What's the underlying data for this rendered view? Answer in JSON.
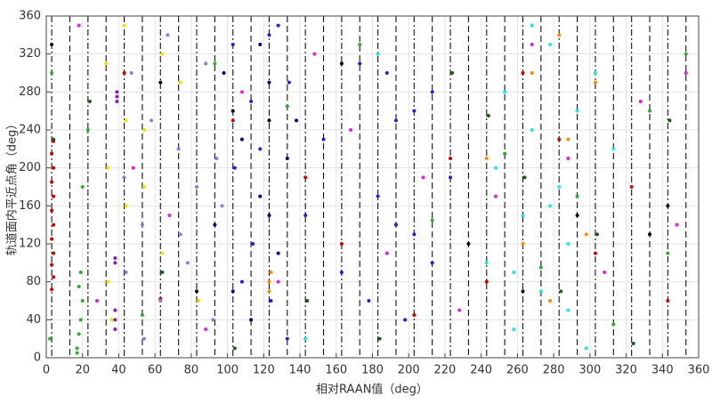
{
  "chart_data": {
    "type": "scatter",
    "xlabel": "相对RAAN值（deg）",
    "ylabel": "轨道面内平近点角（deg）",
    "xlim": [
      0,
      360
    ],
    "ylim": [
      0,
      360
    ],
    "xticks": [
      0,
      20,
      40,
      60,
      80,
      100,
      120,
      140,
      160,
      180,
      200,
      220,
      240,
      260,
      280,
      300,
      320,
      340,
      360
    ],
    "yticks": [
      0,
      40,
      80,
      120,
      160,
      200,
      240,
      280,
      320,
      360
    ],
    "grid": true,
    "vlines": [
      3,
      13,
      23,
      33,
      43,
      53,
      63,
      73,
      83,
      93,
      103,
      113,
      123,
      133,
      143,
      153,
      163,
      173,
      183,
      193,
      203,
      213,
      223,
      233,
      243,
      253,
      263,
      273,
      283,
      293,
      303,
      313,
      323,
      333,
      343,
      353
    ],
    "series": [
      {
        "color": "#d40000",
        "x": [
          3,
          4,
          3,
          4,
          3,
          4,
          3,
          4,
          3,
          4,
          3,
          4,
          43,
          63,
          103,
          143,
          163,
          203,
          223,
          243,
          263,
          263,
          283,
          303,
          323,
          343
        ],
        "y": [
          72,
          85,
          98,
          110,
          125,
          140,
          155,
          170,
          185,
          200,
          215,
          228,
          300,
          62,
          250,
          190,
          120,
          45,
          210,
          80,
          150,
          300,
          230,
          110,
          180,
          60
        ]
      },
      {
        "color": "#33aa33",
        "x": [
          2,
          3,
          17,
          18,
          19,
          20,
          18,
          19,
          17,
          20,
          23,
          53,
          93,
          133,
          173,
          213,
          253,
          273,
          293,
          313,
          333,
          343,
          353
        ],
        "y": [
          20,
          300,
          10,
          25,
          40,
          60,
          75,
          90,
          5,
          180,
          240,
          45,
          310,
          265,
          330,
          145,
          215,
          95,
          170,
          35,
          260,
          110,
          320
        ]
      },
      {
        "color": "#1a5c1a",
        "x": [
          4,
          24,
          64,
          104,
          144,
          184,
          224,
          244,
          264,
          284,
          304,
          324,
          344
        ],
        "y": [
          230,
          270,
          90,
          10,
          60,
          20,
          300,
          255,
          190,
          70,
          130,
          15,
          250
        ]
      },
      {
        "color": "#dd22dd",
        "x": [
          18,
          28,
          48,
          68,
          88,
          108,
          128,
          148,
          168,
          188,
          208,
          228,
          248,
          268,
          288,
          308,
          328,
          348,
          353
        ],
        "y": [
          350,
          60,
          200,
          150,
          30,
          280,
          80,
          320,
          240,
          110,
          190,
          50,
          170,
          330,
          210,
          90,
          270,
          140,
          300
        ]
      },
      {
        "color": "#e6e600",
        "x": [
          33,
          34,
          36,
          43,
          44,
          54,
          64,
          64,
          74,
          84,
          34,
          44,
          54
        ],
        "y": [
          310,
          200,
          40,
          350,
          160,
          240,
          320,
          110,
          290,
          60,
          80,
          250,
          180
        ]
      },
      {
        "color": "#7f1fbf",
        "x": [
          38,
          38,
          38,
          38,
          38,
          39,
          39,
          39
        ],
        "y": [
          30,
          40,
          50,
          100,
          105,
          270,
          275,
          280
        ]
      },
      {
        "color": "#8080e0",
        "x": [
          43,
          47,
          53,
          58,
          63,
          67,
          73,
          78,
          83,
          88,
          92,
          97,
          44,
          54,
          74,
          94
        ],
        "y": [
          190,
          300,
          140,
          250,
          60,
          340,
          220,
          100,
          180,
          310,
          40,
          160,
          90,
          20,
          130,
          210
        ]
      },
      {
        "color": "#1f1fdd",
        "x": [
          103,
          104,
          113,
          114,
          123,
          124,
          133,
          134,
          143,
          153,
          163,
          173,
          183,
          193,
          198,
          203,
          213,
          213,
          223,
          108,
          118,
          128,
          178,
          188,
          193,
          203
        ],
        "y": [
          330,
          200,
          270,
          120,
          340,
          60,
          20,
          290,
          150,
          230,
          90,
          310,
          170,
          250,
          40,
          130,
          280,
          100,
          190,
          80,
          220,
          350,
          60,
          300,
          140,
          260
        ]
      },
      {
        "color": "#000080",
        "x": [
          93,
          98,
          108,
          113,
          118,
          123,
          128,
          133,
          118,
          103,
          123,
          138
        ],
        "y": [
          140,
          300,
          230,
          40,
          170,
          290,
          110,
          210,
          330,
          70,
          150,
          250
        ]
      },
      {
        "color": "#22e5e5",
        "x": [
          143,
          183,
          243,
          248,
          253,
          258,
          263,
          268,
          273,
          278,
          283,
          288,
          293,
          298,
          303,
          313,
          258,
          268,
          278,
          288
        ],
        "y": [
          20,
          320,
          100,
          200,
          280,
          30,
          150,
          240,
          70,
          330,
          180,
          120,
          260,
          10,
          300,
          220,
          90,
          350,
          160,
          50
        ]
      },
      {
        "color": "#ff8c00",
        "x": [
          123,
          123,
          124,
          243,
          263,
          268,
          278,
          283,
          288,
          298,
          303
        ],
        "y": [
          70,
          80,
          90,
          210,
          120,
          300,
          60,
          340,
          230,
          130,
          290
        ]
      },
      {
        "color": "#000000",
        "x": [
          3,
          63,
          83,
          103,
          123,
          163,
          233,
          263,
          293,
          333,
          343
        ],
        "y": [
          330,
          290,
          70,
          260,
          250,
          310,
          120,
          70,
          150,
          130,
          160
        ]
      }
    ]
  }
}
